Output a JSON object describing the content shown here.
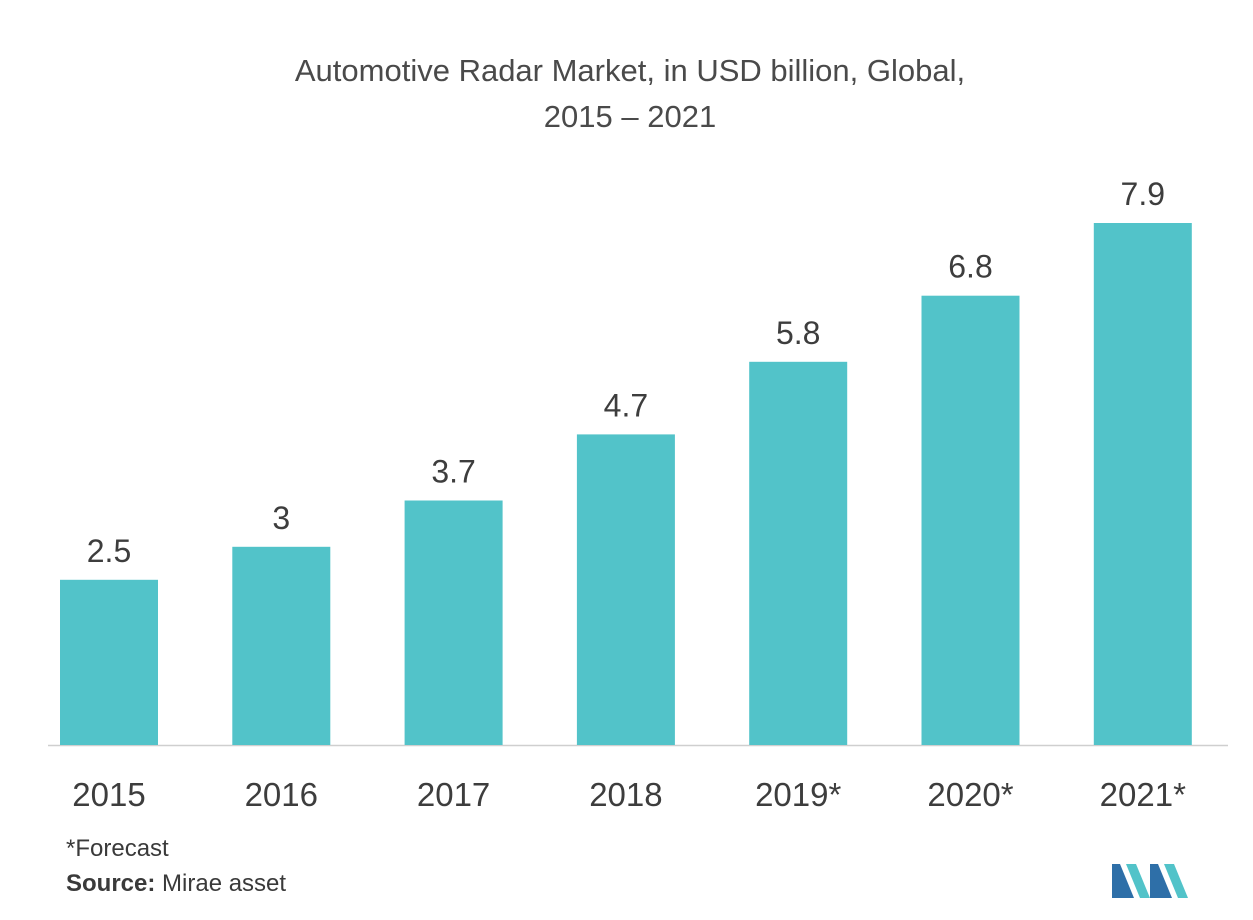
{
  "title": {
    "line1": "Automotive Radar Market, in USD billion, Global,",
    "line2": "2015 – 2021"
  },
  "chart_data": {
    "type": "bar",
    "categories": [
      "2015",
      "2016",
      "2017",
      "2018",
      "2019*",
      "2020*",
      "2021*"
    ],
    "values": [
      2.5,
      3,
      3.7,
      4.7,
      5.8,
      6.8,
      7.9
    ],
    "data_labels": [
      "2.5",
      "3",
      "3.7",
      "4.7",
      "5.8",
      "6.8",
      "7.9"
    ],
    "title": "Automotive Radar Market, in USD billion, Global, 2015 – 2021",
    "xlabel": "",
    "ylabel": "",
    "ylim": [
      0,
      7.9
    ],
    "grid": false,
    "bar_color": "#52c3c9"
  },
  "footnotes": {
    "forecast": "*Forecast",
    "source_label": "Source:",
    "source_value": " Mirae asset"
  },
  "logo": {
    "name": "brand-logo",
    "colors": [
      "#2e6fa8",
      "#52c3c9"
    ]
  }
}
